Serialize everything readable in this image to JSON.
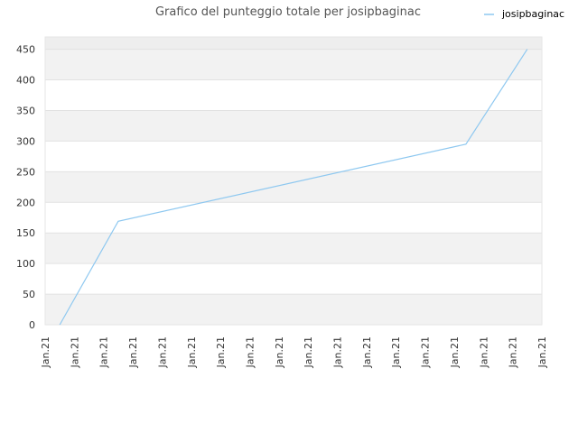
{
  "chart_data": {
    "type": "line",
    "title": "Grafico del punteggio totale per josipbaginac",
    "xlabel": "",
    "ylabel": "",
    "x_ticks": [
      "Jan.21",
      "Jan.21",
      "Jan.21",
      "Jan.21",
      "Jan.21",
      "Jan.21",
      "Jan.21",
      "Jan.21",
      "Jan.21",
      "Jan.21",
      "Jan.21",
      "Jan.21",
      "Jan.21",
      "Jan.21",
      "Jan.21",
      "Jan.21",
      "Jan.21",
      "Jan.21"
    ],
    "y_ticks": [
      0,
      50,
      100,
      150,
      200,
      250,
      300,
      350,
      400,
      450
    ],
    "ylim": [
      0,
      470
    ],
    "grid": "horizontal, alternating band shading",
    "legend_position": "top-right",
    "series": [
      {
        "name": "josipbaginac",
        "color": "#8ec8f0",
        "points": [
          {
            "x": 0.5,
            "y": 0
          },
          {
            "x": 2.5,
            "y": 169
          },
          {
            "x": 14.4,
            "y": 295
          },
          {
            "x": 16.5,
            "y": 450
          }
        ]
      }
    ]
  },
  "colors": {
    "band": "#f2f2f2",
    "top_band": "#eeeeee",
    "gridline": "#e2e2e2",
    "axis": "#e6e6e6"
  }
}
